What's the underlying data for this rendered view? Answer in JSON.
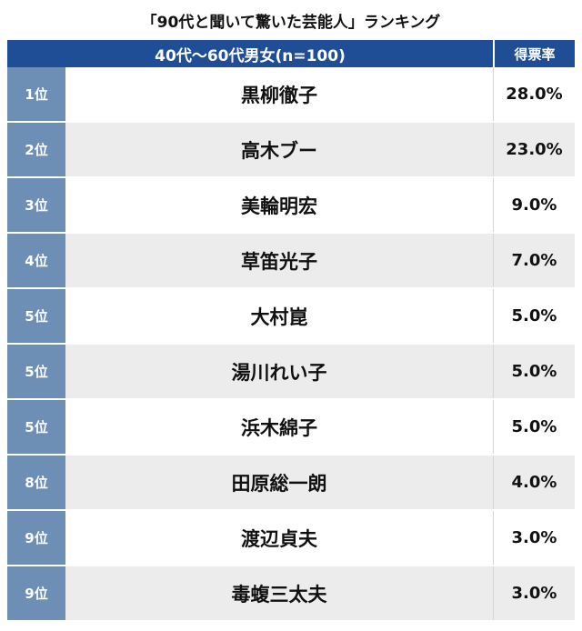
{
  "title": "「90代と聞いて驚いた芸能人」ランキング",
  "header": {
    "group": "40代〜60代男女(n=100)",
    "rate_label": "得票率"
  },
  "chart_data": {
    "type": "table",
    "title": "「90代と聞いて驚いた芸能人」ランキング",
    "columns": [
      "40代〜60代男女(n=100)",
      "得票率"
    ],
    "rows": [
      {
        "rank": "1位",
        "name": "黒柳徹子",
        "rate": "28.0%"
      },
      {
        "rank": "2位",
        "name": "高木ブー",
        "rate": "23.0%"
      },
      {
        "rank": "3位",
        "name": "美輪明宏",
        "rate": "9.0%"
      },
      {
        "rank": "4位",
        "name": "草笛光子",
        "rate": "7.0%"
      },
      {
        "rank": "5位",
        "name": "大村崑",
        "rate": "5.0%"
      },
      {
        "rank": "5位",
        "name": "湯川れい子",
        "rate": "5.0%"
      },
      {
        "rank": "5位",
        "name": "浜木綿子",
        "rate": "5.0%"
      },
      {
        "rank": "8位",
        "name": "田原総一朗",
        "rate": "4.0%"
      },
      {
        "rank": "9位",
        "name": "渡辺貞夫",
        "rate": "3.0%"
      },
      {
        "rank": "9位",
        "name": "毒蝮三太夫",
        "rate": "3.0%"
      }
    ]
  }
}
